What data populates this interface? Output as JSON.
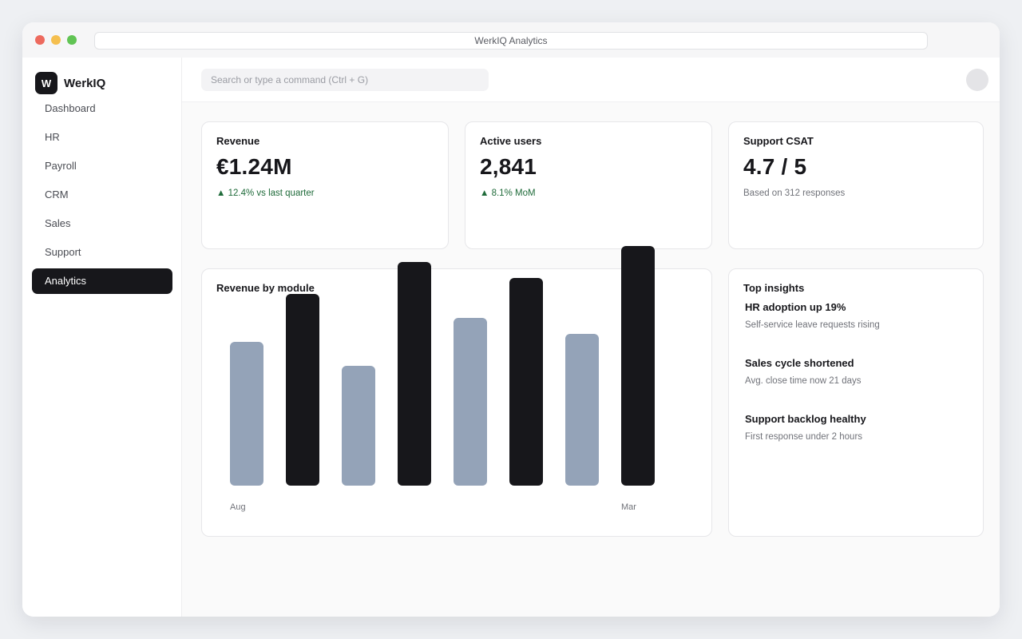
{
  "window": {
    "title": "WerkIQ Analytics"
  },
  "sidebar": {
    "logo_letter": "W",
    "brand": "WerkIQ",
    "items": [
      {
        "label": "Dashboard",
        "active": false
      },
      {
        "label": "HR",
        "active": false
      },
      {
        "label": "Payroll",
        "active": false
      },
      {
        "label": "CRM",
        "active": false
      },
      {
        "label": "Sales",
        "active": false
      },
      {
        "label": "Support",
        "active": false
      },
      {
        "label": "Analytics",
        "active": true
      }
    ]
  },
  "topbar": {
    "search_placeholder": "Search or type a command (Ctrl + G)"
  },
  "kpis": [
    {
      "title": "Revenue",
      "value": "€1.24M",
      "delta": "▲ 12.4% vs last quarter",
      "delta_color": "#1f6b3a"
    },
    {
      "title": "Active users",
      "value": "2,841",
      "delta": "▲ 8.1% MoM",
      "delta_color": "#1f6b3a"
    },
    {
      "title": "Support CSAT",
      "value": "4.7 / 5",
      "note": "Based on 312 responses"
    }
  ],
  "chart_data": {
    "type": "bar",
    "title": "Revenue by module",
    "x_labels": [
      "Aug",
      "Mar"
    ],
    "values": [
      180,
      240,
      150,
      280,
      210,
      260,
      190,
      300
    ],
    "ylim": [
      0,
      300
    ],
    "grid": false,
    "colors": {
      "light": "#94a3b8",
      "dark": "#17171b"
    },
    "bar_colors": [
      "light",
      "dark",
      "light",
      "dark",
      "light",
      "dark",
      "light",
      "dark"
    ]
  },
  "insights": {
    "title": "Top insights",
    "items": [
      {
        "title": "HR adoption up 19%",
        "desc": "Self-service leave requests rising"
      },
      {
        "title": "Sales cycle shortened",
        "desc": "Avg. close time now 21 days"
      },
      {
        "title": "Support backlog healthy",
        "desc": "First response under 2 hours"
      }
    ]
  }
}
